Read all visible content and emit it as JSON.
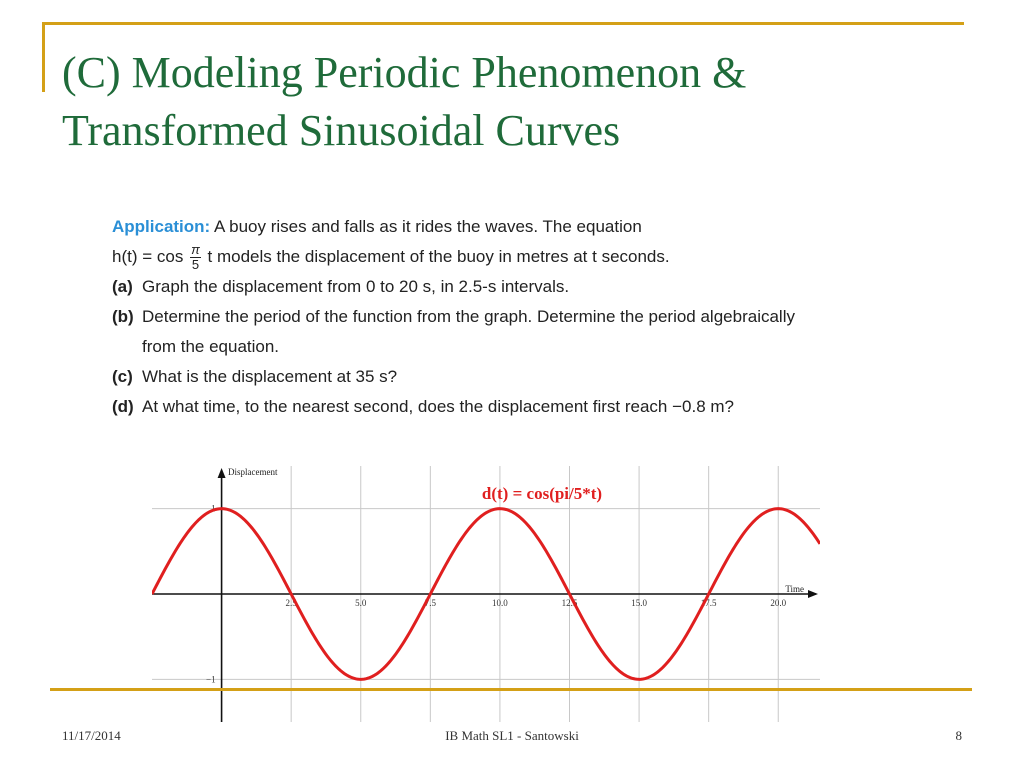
{
  "slide": {
    "title_line1": "(C) Modeling Periodic Phenomenon &",
    "title_line2": "Transformed Sinusoidal Curves"
  },
  "problem": {
    "label": "Application:",
    "line1_text": "A buoy rises and falls as it rides the waves. The equation",
    "eq_prefix": "h(t) = cos",
    "frac_num": "π",
    "frac_den": "5",
    "eq_suffix": "t models the displacement of the buoy in metres at t seconds.",
    "items": [
      {
        "label": "(a)",
        "text": "Graph the displacement from 0 to 20 s, in 2.5-s intervals."
      },
      {
        "label": "(b)",
        "text": "Determine the period of the function from the graph. Determine the period algebraically from the equation."
      },
      {
        "label": "(c)",
        "text": "What is the displacement at 35 s?"
      },
      {
        "label": "(d)",
        "text": "At what time, to the nearest second, does the displacement first reach −0.8 m?"
      }
    ]
  },
  "chart_data": {
    "type": "line",
    "title": "d(t) = cos(pi/5*t)",
    "xlabel": "Time",
    "ylabel": "Displacement",
    "x_ticks": [
      "2.5",
      "5.0",
      "7.5",
      "10.0",
      "12.5",
      "15.0",
      "17.5",
      "20.0"
    ],
    "y_ticks": [
      "1",
      "−1"
    ],
    "xlim": [
      -2.5,
      21.5
    ],
    "ylim": [
      -1.5,
      1.5
    ],
    "grid": true,
    "series": [
      {
        "color": "#e01f1f",
        "function": "cos(pi/5*t)"
      }
    ]
  },
  "footer": {
    "date": "11/17/2014",
    "center": "IB Math SL1 - Santowski",
    "page": "8"
  }
}
